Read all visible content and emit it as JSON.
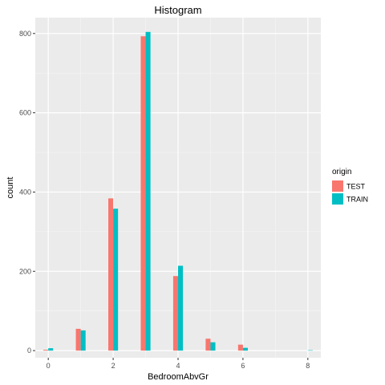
{
  "chart_data": {
    "type": "bar",
    "title": "Histogram",
    "xlabel": "BedroomAbvGr",
    "ylabel": "count",
    "x": [
      0,
      1,
      2,
      3,
      4,
      5,
      6,
      8
    ],
    "xticks": [
      0,
      2,
      4,
      6,
      8
    ],
    "yticks": [
      0,
      200,
      400,
      600,
      800
    ],
    "xlim": [
      -0.4,
      8.4
    ],
    "ylim": [
      -18,
      840
    ],
    "grid": true,
    "legend_position": "right",
    "legend_title": "origin",
    "series": [
      {
        "name": "TEST",
        "color": "#F8766D",
        "values": [
          2,
          55,
          384,
          793,
          188,
          30,
          15,
          0
        ]
      },
      {
        "name": "TRAIN",
        "color": "#00BFC4",
        "values": [
          6,
          51,
          358,
          804,
          214,
          21,
          7,
          1
        ]
      }
    ]
  }
}
